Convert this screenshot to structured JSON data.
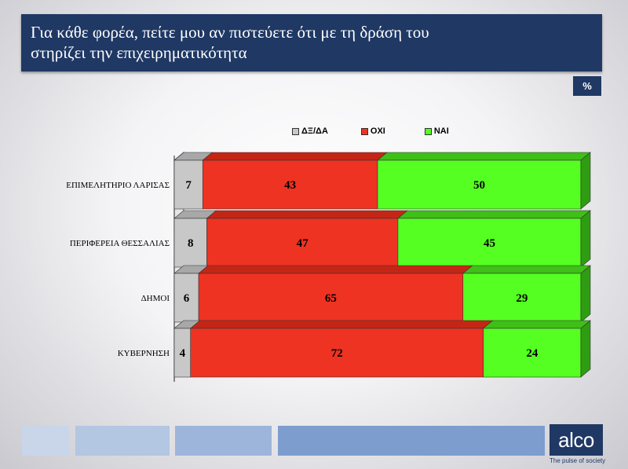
{
  "header": {
    "title_line1": "Για κάθε φορέα, πείτε μου αν πιστεύετε ότι με τη δράση του",
    "title_line2": "στηρίζει την επιχειρηματικότητα"
  },
  "badge": "%",
  "logo": {
    "text": "alco",
    "tagline": "The pulse of society"
  },
  "colors": {
    "header_bg": "#1f3864",
    "dx": "#c8c8c8",
    "oxi": "#ee3322",
    "nai": "#55ff22"
  },
  "chart_data": {
    "type": "bar",
    "orientation": "horizontal",
    "stacked": true,
    "percent": true,
    "categories": [
      "ΕΠΙΜΕΛΗΤΗΡΙΟ ΛΑΡΙΣΑΣ",
      "ΠΕΡΙΦΕΡΕΙΑ ΘΕΣΣΑΛΙΑΣ",
      "ΔΗΜΟΙ",
      "ΚΥΒΕΡΝΗΣΗ"
    ],
    "series": [
      {
        "name": "ΔΞ/ΔΑ",
        "color": "#c8c8c8",
        "values": [
          7,
          8,
          6,
          4
        ]
      },
      {
        "name": "ΟΧΙ",
        "color": "#ee3322",
        "values": [
          43,
          47,
          65,
          72
        ]
      },
      {
        "name": "ΝΑΙ",
        "color": "#55ff22",
        "values": [
          50,
          45,
          29,
          24
        ]
      }
    ],
    "xlim": [
      0,
      100
    ],
    "legend_position": "top",
    "grid": false
  }
}
